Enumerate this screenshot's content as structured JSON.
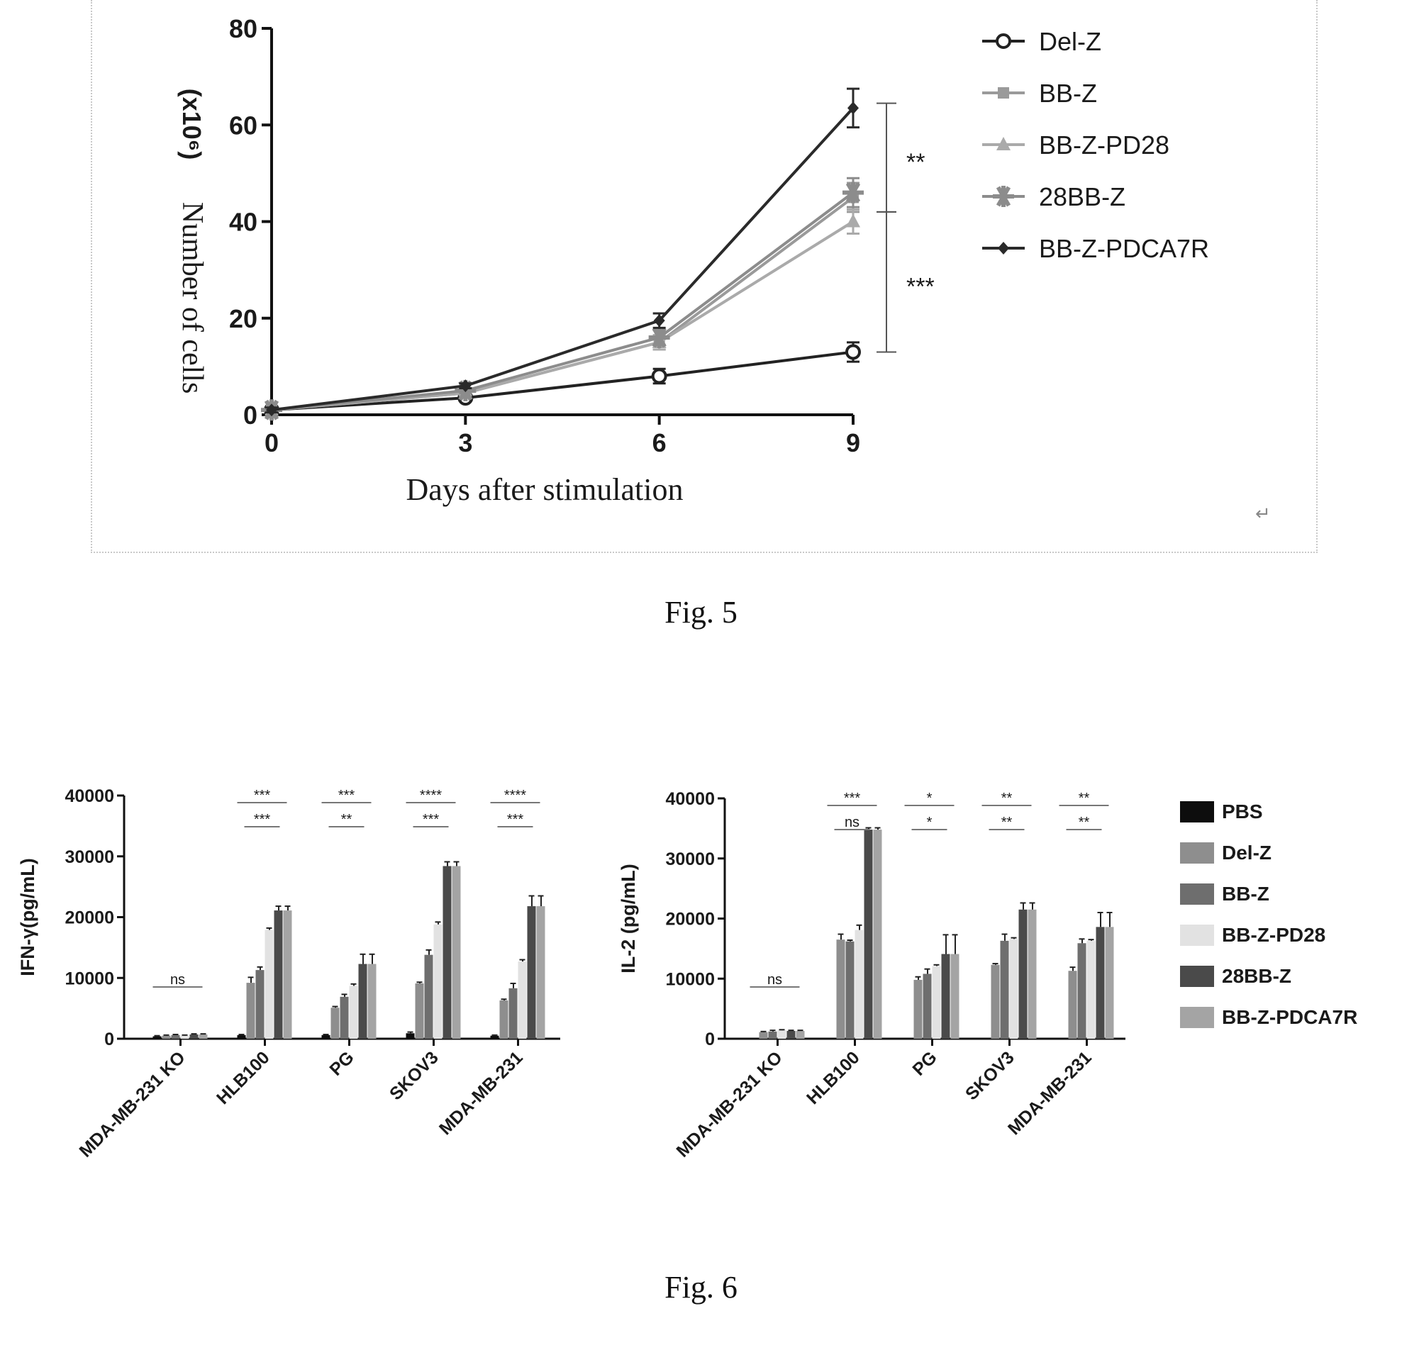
{
  "captions": {
    "fig5": "Fig. 5",
    "fig6": "Fig. 6"
  },
  "return_mark": "↵",
  "chart_data": [
    {
      "type": "line",
      "xlabel": "Days after stimulation",
      "ylabel": "Number of cells",
      "yunit": "(x10⁶)",
      "x": [
        0,
        3,
        6,
        9
      ],
      "xlim": [
        0,
        9
      ],
      "ylim": [
        0,
        80
      ],
      "xticks": [
        0,
        3,
        6,
        9
      ],
      "yticks": [
        0,
        20,
        40,
        60,
        80
      ],
      "legend_position": "right",
      "series": [
        {
          "name": "Del-Z",
          "color": "#222222",
          "marker": "open-circle",
          "values": [
            1,
            3.5,
            8,
            13
          ],
          "errors": [
            0.5,
            0.5,
            1.5,
            2
          ]
        },
        {
          "name": "BB-Z",
          "color": "#9a9a9a",
          "marker": "square",
          "values": [
            1,
            4.5,
            15,
            45
          ],
          "errors": [
            0.5,
            0.5,
            1.5,
            3
          ]
        },
        {
          "name": "BB-Z-PD28",
          "color": "#aaaaaa",
          "marker": "triangle",
          "values": [
            1,
            4.5,
            15,
            40
          ],
          "errors": [
            0.5,
            0.5,
            1.5,
            2.5
          ]
        },
        {
          "name": "28BB-Z",
          "color": "#8c8c8c",
          "marker": "star",
          "values": [
            1,
            5,
            16,
            46
          ],
          "errors": [
            0.5,
            0.5,
            1.5,
            3
          ]
        },
        {
          "name": "BB-Z-PDCA7R",
          "color": "#2a2a2a",
          "marker": "diamond",
          "values": [
            1,
            6,
            19.5,
            63.5
          ],
          "errors": [
            0.5,
            0.5,
            1.5,
            4
          ]
        }
      ],
      "annotations": [
        {
          "label": "**",
          "from": 63.5,
          "to": 42
        },
        {
          "label": "***",
          "from": 42,
          "to": 13
        }
      ]
    },
    {
      "type": "bar",
      "ylabel": "IFN-γ(pg/mL)",
      "ylim": [
        0,
        40000
      ],
      "yticks": [
        0,
        10000,
        20000,
        30000,
        40000
      ],
      "categories": [
        "MDA-MB-231 KO",
        "HLB100",
        "PG",
        "SKOV3",
        "MDA-MB-231"
      ],
      "series": [
        {
          "name": "PBS",
          "values": [
            400,
            600,
            600,
            900,
            500
          ]
        },
        {
          "name": "Del-Z",
          "values": [
            500,
            9200,
            5100,
            9100,
            6300
          ]
        },
        {
          "name": "BB-Z",
          "values": [
            600,
            11300,
            6900,
            13800,
            8300
          ]
        },
        {
          "name": "BB-Z-PD28",
          "values": [
            500,
            17900,
            8700,
            18800,
            12700
          ]
        },
        {
          "name": "28BB-Z",
          "values": [
            700,
            21100,
            12300,
            28400,
            21800
          ]
        },
        {
          "name": "BB-Z-PDCA7R",
          "values": [
            700,
            21100,
            12300,
            28400,
            21800
          ]
        }
      ],
      "errors": [
        [
          100,
          100,
          100,
          200,
          100
        ],
        [
          100,
          900,
          200,
          200,
          200
        ],
        [
          100,
          500,
          400,
          800,
          800
        ],
        [
          100,
          300,
          300,
          400,
          300
        ],
        [
          100,
          700,
          1600,
          700,
          1700
        ],
        [
          100,
          700,
          1600,
          700,
          1700
        ]
      ],
      "significance": [
        {
          "category": "MDA-MB-231 KO",
          "rows": [
            "ns"
          ]
        },
        {
          "category": "HLB100",
          "rows": [
            "***",
            "***"
          ]
        },
        {
          "category": "PG",
          "rows": [
            "***",
            "**"
          ]
        },
        {
          "category": "SKOV3",
          "rows": [
            "****",
            "***"
          ]
        },
        {
          "category": "MDA-MB-231",
          "rows": [
            "****",
            "***"
          ]
        }
      ]
    },
    {
      "type": "bar",
      "ylabel": "IL-2 (pg/mL)",
      "ylim": [
        0,
        40000
      ],
      "yticks": [
        0,
        10000,
        20000,
        30000,
        40000
      ],
      "categories": [
        "MDA-MB-231 KO",
        "HLB100",
        "PG",
        "SKOV3",
        "MDA-MB-231"
      ],
      "series": [
        {
          "name": "PBS",
          "values": [
            0,
            0,
            0,
            0,
            0
          ]
        },
        {
          "name": "Del-Z",
          "values": [
            1100,
            16500,
            9800,
            12300,
            11300
          ]
        },
        {
          "name": "BB-Z",
          "values": [
            1200,
            16200,
            10800,
            16300,
            15900
          ]
        },
        {
          "name": "BB-Z-PD28",
          "values": [
            1400,
            18100,
            12100,
            16600,
            16300
          ]
        },
        {
          "name": "28BB-Z",
          "values": [
            1300,
            34800,
            14100,
            21500,
            18600
          ]
        },
        {
          "name": "BB-Z-PDCA7R",
          "values": [
            1300,
            34800,
            14100,
            21500,
            18600
          ]
        }
      ],
      "errors": [
        [
          0,
          0,
          0,
          0,
          0
        ],
        [
          100,
          900,
          500,
          200,
          600
        ],
        [
          200,
          200,
          800,
          1100,
          700
        ],
        [
          100,
          800,
          200,
          200,
          200
        ],
        [
          100,
          300,
          3200,
          1100,
          2400
        ],
        [
          100,
          300,
          3200,
          1100,
          2400
        ]
      ],
      "significance": [
        {
          "category": "MDA-MB-231 KO",
          "rows": [
            "ns"
          ]
        },
        {
          "category": "HLB100",
          "rows": [
            "***",
            "ns"
          ]
        },
        {
          "category": "PG",
          "rows": [
            "*",
            "*"
          ]
        },
        {
          "category": "SKOV3",
          "rows": [
            "**",
            "**"
          ]
        },
        {
          "category": "MDA-MB-231",
          "rows": [
            "**",
            "**"
          ]
        }
      ]
    }
  ],
  "bar_legend": {
    "items": [
      {
        "name": "PBS",
        "color": "#0d0d0d"
      },
      {
        "name": "Del-Z",
        "color": "#8e8e8e"
      },
      {
        "name": "BB-Z",
        "color": "#6e6e6e"
      },
      {
        "name": "BB-Z-PD28",
        "color": "#e2e2e2"
      },
      {
        "name": "28BB-Z",
        "color": "#4a4a4a"
      },
      {
        "name": "BB-Z-PDCA7R",
        "color": "#a4a4a4"
      }
    ]
  }
}
